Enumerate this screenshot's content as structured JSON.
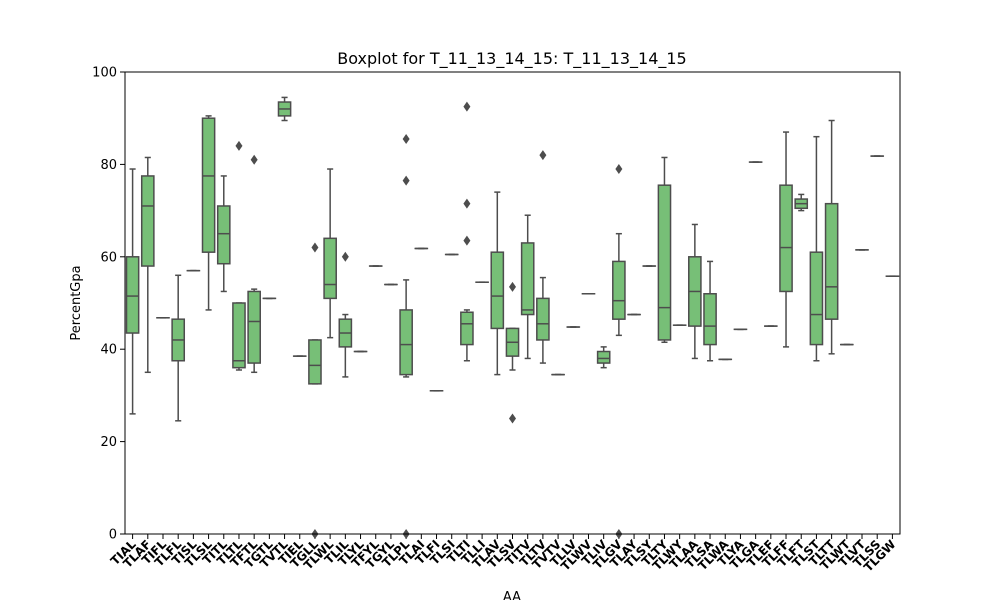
{
  "chart_data": {
    "type": "boxplot",
    "title": "Boxplot for T_11_13_14_15: T_11_13_14_15",
    "xlabel": "AA",
    "ylabel": "PercentGpa",
    "ylim": [
      0,
      100
    ],
    "yticks": [
      0,
      20,
      40,
      60,
      80,
      100
    ],
    "grid": false,
    "colors": {
      "box_fill": "#77bf77",
      "line": "#4d4d4d",
      "outlier": "#4d4d4d"
    },
    "categories": [
      "TIAL",
      "TLAF",
      "TIFL",
      "TLFL",
      "TISL",
      "TLSL",
      "TITL",
      "TLTL",
      "TFTL",
      "TGTL",
      "TVTL",
      "TIEL",
      "TGLL",
      "TLWL",
      "TLIL",
      "TLYL",
      "TFYL",
      "TGYL",
      "TLPL",
      "TLAI",
      "TLFI",
      "TLSI",
      "TLTI",
      "TLLI",
      "TLAV",
      "TLSV",
      "TITV",
      "TLTV",
      "TVTV",
      "TLLV",
      "TLWV",
      "TLIV",
      "TLGV",
      "TLAY",
      "TLSY",
      "TLTY",
      "TLWY",
      "TLAA",
      "TLSA",
      "TLWA",
      "TLYA",
      "TLGA",
      "TLEF",
      "TLFF",
      "TLFT",
      "TLST",
      "TLTT",
      "TLWT",
      "TLVT",
      "TLSS",
      "TLGW"
    ],
    "boxes": [
      {
        "min": 26,
        "q1": 43.5,
        "median": 51.5,
        "q3": 60,
        "max": 79,
        "outliers": []
      },
      {
        "min": 35,
        "q1": 58,
        "median": 71,
        "q3": 77.5,
        "max": 81.5,
        "outliers": []
      },
      {
        "min": 46.8,
        "q1": 46.8,
        "median": 46.8,
        "q3": 46.8,
        "max": 46.8,
        "outliers": []
      },
      {
        "min": 24.5,
        "q1": 37.5,
        "median": 42,
        "q3": 46.5,
        "max": 56,
        "outliers": []
      },
      {
        "min": 57,
        "q1": 57,
        "median": 57,
        "q3": 57,
        "max": 57,
        "outliers": []
      },
      {
        "min": 48.5,
        "q1": 61,
        "median": 77.5,
        "q3": 90,
        "max": 90.5,
        "outliers": []
      },
      {
        "min": 52.5,
        "q1": 58.5,
        "median": 65,
        "q3": 71,
        "max": 77.5,
        "outliers": []
      },
      {
        "min": 35.5,
        "q1": 36,
        "median": 37.5,
        "q3": 50,
        "max": 50,
        "outliers": [
          84
        ]
      },
      {
        "min": 35,
        "q1": 37,
        "median": 46,
        "q3": 52.5,
        "max": 53,
        "outliers": [
          81
        ]
      },
      {
        "min": 51,
        "q1": 51,
        "median": 51,
        "q3": 51,
        "max": 51,
        "outliers": []
      },
      {
        "min": 89.5,
        "q1": 90.5,
        "median": 92,
        "q3": 93.5,
        "max": 94.5,
        "outliers": []
      },
      {
        "min": 38.5,
        "q1": 38.5,
        "median": 38.5,
        "q3": 38.5,
        "max": 38.5,
        "outliers": []
      },
      {
        "min": 32.5,
        "q1": 32.5,
        "median": 36.5,
        "q3": 42,
        "max": 42,
        "outliers": [
          62,
          0
        ]
      },
      {
        "min": 42.5,
        "q1": 51,
        "median": 54,
        "q3": 64,
        "max": 79,
        "outliers": []
      },
      {
        "min": 34,
        "q1": 40.5,
        "median": 43.5,
        "q3": 46.5,
        "max": 47.5,
        "outliers": [
          60
        ]
      },
      {
        "min": 39.5,
        "q1": 39.5,
        "median": 39.5,
        "q3": 39.5,
        "max": 39.5,
        "outliers": []
      },
      {
        "min": 58,
        "q1": 58,
        "median": 58,
        "q3": 58,
        "max": 58,
        "outliers": []
      },
      {
        "min": 54,
        "q1": 54,
        "median": 54,
        "q3": 54,
        "max": 54,
        "outliers": []
      },
      {
        "min": 34,
        "q1": 34.5,
        "median": 41,
        "q3": 48.5,
        "max": 55,
        "outliers": [
          85.5,
          76.5,
          0
        ]
      },
      {
        "min": 61.8,
        "q1": 61.8,
        "median": 61.8,
        "q3": 61.8,
        "max": 61.8,
        "outliers": []
      },
      {
        "min": 31,
        "q1": 31,
        "median": 31,
        "q3": 31,
        "max": 31,
        "outliers": []
      },
      {
        "min": 60.5,
        "q1": 60.5,
        "median": 60.5,
        "q3": 60.5,
        "max": 60.5,
        "outliers": []
      },
      {
        "min": 37.5,
        "q1": 41,
        "median": 45.5,
        "q3": 48,
        "max": 48.5,
        "outliers": [
          92.5,
          71.5,
          63.5
        ]
      },
      {
        "min": 54.5,
        "q1": 54.5,
        "median": 54.5,
        "q3": 54.5,
        "max": 54.5,
        "outliers": []
      },
      {
        "min": 34.5,
        "q1": 44.5,
        "median": 51.5,
        "q3": 61,
        "max": 74,
        "outliers": []
      },
      {
        "min": 35.5,
        "q1": 38.5,
        "median": 41.5,
        "q3": 44.5,
        "max": 44.5,
        "outliers": [
          53.5,
          25
        ]
      },
      {
        "min": 38,
        "q1": 47.5,
        "median": 48.5,
        "q3": 63,
        "max": 69,
        "outliers": []
      },
      {
        "min": 37,
        "q1": 42,
        "median": 45.5,
        "q3": 51,
        "max": 55.5,
        "outliers": [
          82
        ]
      },
      {
        "min": 34.5,
        "q1": 34.5,
        "median": 34.5,
        "q3": 34.5,
        "max": 34.5,
        "outliers": []
      },
      {
        "min": 44.8,
        "q1": 44.8,
        "median": 44.8,
        "q3": 44.8,
        "max": 44.8,
        "outliers": []
      },
      {
        "min": 52,
        "q1": 52,
        "median": 52,
        "q3": 52,
        "max": 52,
        "outliers": []
      },
      {
        "min": 36,
        "q1": 37,
        "median": 38,
        "q3": 39.5,
        "max": 40.5,
        "outliers": []
      },
      {
        "min": 43,
        "q1": 46.5,
        "median": 50.5,
        "q3": 59,
        "max": 65,
        "outliers": [
          79,
          0
        ]
      },
      {
        "min": 47.5,
        "q1": 47.5,
        "median": 47.5,
        "q3": 47.5,
        "max": 47.5,
        "outliers": []
      },
      {
        "min": 58,
        "q1": 58,
        "median": 58,
        "q3": 58,
        "max": 58,
        "outliers": []
      },
      {
        "min": 41.5,
        "q1": 42,
        "median": 49,
        "q3": 75.5,
        "max": 81.5,
        "outliers": []
      },
      {
        "min": 45.2,
        "q1": 45.2,
        "median": 45.2,
        "q3": 45.2,
        "max": 45.2,
        "outliers": []
      },
      {
        "min": 38,
        "q1": 45,
        "median": 52.5,
        "q3": 60,
        "max": 67,
        "outliers": []
      },
      {
        "min": 37.5,
        "q1": 41,
        "median": 45,
        "q3": 52,
        "max": 59,
        "outliers": []
      },
      {
        "min": 37.8,
        "q1": 37.8,
        "median": 37.8,
        "q3": 37.8,
        "max": 37.8,
        "outliers": []
      },
      {
        "min": 44.3,
        "q1": 44.3,
        "median": 44.3,
        "q3": 44.3,
        "max": 44.3,
        "outliers": []
      },
      {
        "min": 80.5,
        "q1": 80.5,
        "median": 80.5,
        "q3": 80.5,
        "max": 80.5,
        "outliers": []
      },
      {
        "min": 45,
        "q1": 45,
        "median": 45,
        "q3": 45,
        "max": 45,
        "outliers": []
      },
      {
        "min": 40.5,
        "q1": 52.5,
        "median": 62,
        "q3": 75.5,
        "max": 87,
        "outliers": []
      },
      {
        "min": 70,
        "q1": 70.5,
        "median": 71.5,
        "q3": 72.5,
        "max": 73.5,
        "outliers": []
      },
      {
        "min": 37.5,
        "q1": 41,
        "median": 47.5,
        "q3": 61,
        "max": 86,
        "outliers": []
      },
      {
        "min": 39,
        "q1": 46.5,
        "median": 53.5,
        "q3": 71.5,
        "max": 89.5,
        "outliers": []
      },
      {
        "min": 41,
        "q1": 41,
        "median": 41,
        "q3": 41,
        "max": 41,
        "outliers": []
      },
      {
        "min": 61.5,
        "q1": 61.5,
        "median": 61.5,
        "q3": 61.5,
        "max": 61.5,
        "outliers": []
      },
      {
        "min": 81.8,
        "q1": 81.8,
        "median": 81.8,
        "q3": 81.8,
        "max": 81.8,
        "outliers": []
      },
      {
        "min": 55.8,
        "q1": 55.8,
        "median": 55.8,
        "q3": 55.8,
        "max": 55.8,
        "outliers": []
      }
    ]
  }
}
